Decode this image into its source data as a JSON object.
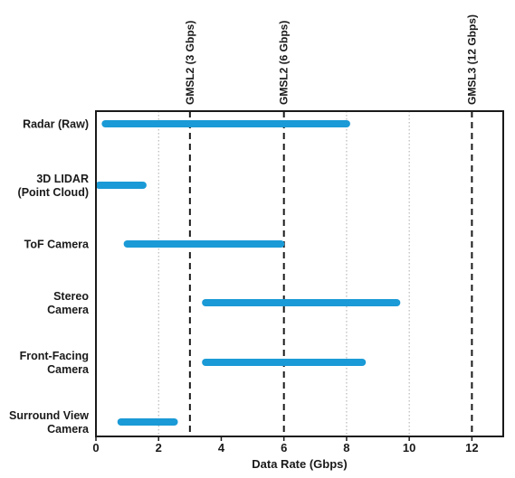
{
  "chart_data": {
    "type": "bar",
    "orientation": "horizontal",
    "subtype": "range",
    "categories": [
      [
        "Radar (Raw)"
      ],
      [
        "3D LIDAR",
        "(Point Cloud)"
      ],
      [
        "ToF Camera"
      ],
      [
        "Stereo",
        "Camera"
      ],
      [
        "Front-Facing",
        "Camera"
      ],
      [
        "Surround View",
        "Camera"
      ]
    ],
    "ranges": [
      [
        0.3,
        8.0
      ],
      [
        0.1,
        1.5
      ],
      [
        1.0,
        5.9
      ],
      [
        3.5,
        9.6
      ],
      [
        3.5,
        8.5
      ],
      [
        0.8,
        2.5
      ]
    ],
    "xlabel": "Data Rate (Gbps)",
    "xlim": [
      0,
      13
    ],
    "xticks": [
      0,
      2,
      4,
      6,
      8,
      10,
      12
    ],
    "grid": "vertical dotted at 2, 8, 10",
    "reference_lines": [
      {
        "x": 3,
        "label": "GMSL2 (3 Gbps)"
      },
      {
        "x": 6,
        "label": "GMSL2 (6 Gbps)"
      },
      {
        "x": 12,
        "label": "GMSL3 (12 Gbps)"
      }
    ],
    "colors": {
      "bar": "#1a9ad6",
      "axis": "#1a1a1a",
      "grid": "#aaaaaa",
      "reference": "#1a1a1a"
    }
  }
}
